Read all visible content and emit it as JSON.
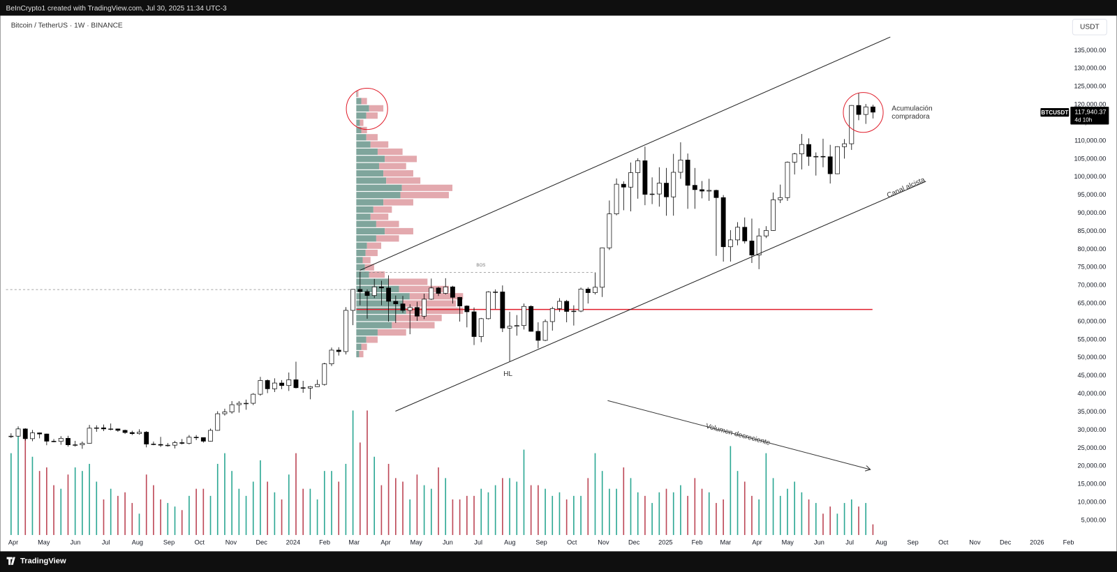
{
  "chart_data": {
    "type": "candlestick",
    "header": "BeInCrypto1 created with TradingView.com, Jul 30, 2025 11:34 UTC-3",
    "title": "Bitcoin / TetherUS · 1W · BINANCE",
    "currency": "USDT",
    "brand": "TradingView",
    "last_price": {
      "symbol": "BTCUSDT",
      "label": "117,940.37",
      "countdown": "4d 10h"
    },
    "annotations": {
      "bos": "BOS",
      "hl": "HL",
      "accumulation": [
        "Acumulación",
        "compradora"
      ],
      "channel": "Canal alcista",
      "volume": "Volumen decreciente"
    },
    "candle_colors": {
      "up": "#ffffff",
      "down": "#000000",
      "border": "#000000"
    },
    "volume_colors": {
      "up": "#089981",
      "down": "#b2283a"
    },
    "profile_colors": {
      "up": "#7fa59c",
      "down": "#e3a9ae"
    },
    "log_scale": false,
    "grid": false,
    "xlim": [
      -3,
      1041
    ],
    "ylim": [
      0,
      140000
    ],
    "yticks": [
      {
        "value": 135000,
        "label": "135,000.00"
      },
      {
        "value": 130000,
        "label": "130,000.00"
      },
      {
        "value": 125000,
        "label": "125,000.00"
      },
      {
        "value": 120000,
        "label": "120,000.00"
      },
      {
        "value": 115000,
        "label": "115,000.00"
      },
      {
        "value": 110000,
        "label": "110,000.00"
      },
      {
        "value": 105000,
        "label": "105,000.00"
      },
      {
        "value": 100000,
        "label": "100,000.00"
      },
      {
        "value": 95000,
        "label": "95,000.00"
      },
      {
        "value": 90000,
        "label": "90,000.00"
      },
      {
        "value": 85000,
        "label": "85,000.00"
      },
      {
        "value": 80000,
        "label": "80,000.00"
      },
      {
        "value": 75000,
        "label": "75,000.00"
      },
      {
        "value": 70000,
        "label": "70,000.00"
      },
      {
        "value": 65000,
        "label": "65,000.00"
      },
      {
        "value": 60000,
        "label": "60,000.00"
      },
      {
        "value": 55000,
        "label": "55,000.00"
      },
      {
        "value": 50000,
        "label": "50,000.00"
      },
      {
        "value": 45000,
        "label": "45,000.00"
      },
      {
        "value": 40000,
        "label": "40,000.00"
      },
      {
        "value": 35000,
        "label": "35,000.00"
      },
      {
        "value": 30000,
        "label": "30,000.00"
      },
      {
        "value": 25000,
        "label": "25,000.00"
      },
      {
        "value": 20000,
        "label": "20,000.00"
      },
      {
        "value": 15000,
        "label": "15,000.00"
      },
      {
        "value": 10000,
        "label": "10,000.00"
      },
      {
        "value": 5000,
        "label": "5,000.00"
      }
    ],
    "xticks": [
      {
        "value": 0,
        "label": "Apr"
      },
      {
        "value": 30,
        "label": "May"
      },
      {
        "value": 61,
        "label": "Jun"
      },
      {
        "value": 91,
        "label": "Jul"
      },
      {
        "value": 122,
        "label": "Aug"
      },
      {
        "value": 153,
        "label": "Sep"
      },
      {
        "value": 183,
        "label": "Oct"
      },
      {
        "value": 214,
        "label": "Nov"
      },
      {
        "value": 244,
        "label": "Dec"
      },
      {
        "value": 275,
        "label": "2024"
      },
      {
        "value": 306,
        "label": "Feb"
      },
      {
        "value": 335,
        "label": "Mar"
      },
      {
        "value": 366,
        "label": "Apr"
      },
      {
        "value": 396,
        "label": "May"
      },
      {
        "value": 427,
        "label": "Jun"
      },
      {
        "value": 457,
        "label": "Jul"
      },
      {
        "value": 488,
        "label": "Aug"
      },
      {
        "value": 519,
        "label": "Sep"
      },
      {
        "value": 549,
        "label": "Oct"
      },
      {
        "value": 580,
        "label": "Nov"
      },
      {
        "value": 610,
        "label": "Dec"
      },
      {
        "value": 641,
        "label": "2025"
      },
      {
        "value": 672,
        "label": "Feb"
      },
      {
        "value": 700,
        "label": "Mar"
      },
      {
        "value": 731,
        "label": "Apr"
      },
      {
        "value": 761,
        "label": "May"
      },
      {
        "value": 792,
        "label": "Jun"
      },
      {
        "value": 822,
        "label": "Jul"
      },
      {
        "value": 853,
        "label": "Aug"
      },
      {
        "value": 884,
        "label": "Sep"
      },
      {
        "value": 914,
        "label": "Oct"
      },
      {
        "value": 945,
        "label": "Nov"
      },
      {
        "value": 975,
        "label": "Dec"
      },
      {
        "value": 1006,
        "label": "2026"
      },
      {
        "value": 1037,
        "label": "Feb"
      }
    ],
    "x": [
      2,
      9,
      16,
      23,
      30,
      37,
      44,
      51,
      58,
      65,
      72,
      79,
      86,
      93,
      100,
      107,
      114,
      121,
      128,
      135,
      142,
      149,
      156,
      163,
      170,
      177,
      184,
      191,
      198,
      205,
      212,
      219,
      226,
      233,
      240,
      247,
      254,
      261,
      268,
      275,
      282,
      289,
      296,
      303,
      310,
      317,
      324,
      331,
      338,
      345,
      352,
      359,
      366,
      373,
      380,
      387,
      394,
      401,
      408,
      415,
      422,
      429,
      436,
      443,
      450,
      457,
      464,
      471,
      478,
      485,
      492,
      499,
      506,
      513,
      520,
      527,
      534,
      541,
      548,
      555,
      562,
      569,
      576,
      583,
      590,
      597,
      604,
      611,
      618,
      625,
      632,
      639,
      646,
      653,
      660,
      667,
      674,
      681,
      688,
      695,
      702,
      709,
      716,
      723,
      730,
      737,
      744,
      751,
      758,
      765,
      772,
      779,
      786,
      793,
      800,
      807,
      814,
      821,
      828,
      835,
      842,
      849
    ],
    "ohlc": [
      [
        28170,
        29100,
        27800,
        28300
      ],
      [
        28300,
        31000,
        28200,
        30300
      ],
      [
        30300,
        30500,
        27100,
        27600
      ],
      [
        27600,
        30000,
        26900,
        29200
      ],
      [
        29200,
        29300,
        27700,
        28900
      ],
      [
        28900,
        29000,
        25800,
        26900
      ],
      [
        26900,
        27500,
        26600,
        26850
      ],
      [
        26850,
        28300,
        25900,
        27700
      ],
      [
        27700,
        28400,
        25400,
        25900
      ],
      [
        25900,
        27000,
        25400,
        25900
      ],
      [
        25900,
        26800,
        24800,
        26300
      ],
      [
        26300,
        31400,
        26200,
        30500
      ],
      [
        30500,
        31300,
        29500,
        30600
      ],
      [
        30600,
        31500,
        29700,
        30300
      ],
      [
        30300,
        31800,
        29900,
        30300
      ],
      [
        30300,
        30400,
        29500,
        29900
      ],
      [
        29900,
        30100,
        28900,
        29300
      ],
      [
        29300,
        29800,
        28600,
        29000
      ],
      [
        29000,
        30200,
        28700,
        29400
      ],
      [
        29400,
        29700,
        25200,
        26100
      ],
      [
        26100,
        26800,
        25800,
        26000
      ],
      [
        26000,
        28100,
        25300,
        25800
      ],
      [
        25800,
        26400,
        25400,
        25800
      ],
      [
        25800,
        27000,
        24900,
        26500
      ],
      [
        26500,
        27500,
        26000,
        26300
      ],
      [
        26300,
        28600,
        26000,
        28000
      ],
      [
        28000,
        28600,
        27200,
        27900
      ],
      [
        27900,
        27950,
        26500,
        26900
      ],
      [
        26900,
        30400,
        26800,
        29900
      ],
      [
        29900,
        35200,
        29800,
        34500
      ],
      [
        34500,
        35900,
        34000,
        35000
      ],
      [
        35000,
        38000,
        34500,
        37000
      ],
      [
        37000,
        38000,
        34800,
        37400
      ],
      [
        37400,
        38400,
        35600,
        37400
      ],
      [
        37400,
        40200,
        36900,
        39900
      ],
      [
        39900,
        44700,
        39500,
        43700
      ],
      [
        43700,
        44000,
        40200,
        41400
      ],
      [
        41400,
        44300,
        40500,
        43000
      ],
      [
        43000,
        43800,
        41300,
        42300
      ],
      [
        42300,
        45900,
        40800,
        43900
      ],
      [
        43900,
        48900,
        41500,
        41700
      ],
      [
        41700,
        43600,
        40300,
        41600
      ],
      [
        41600,
        42200,
        38500,
        42000
      ],
      [
        42000,
        43900,
        41900,
        42600
      ],
      [
        42600,
        48600,
        42300,
        48300
      ],
      [
        48300,
        52800,
        47700,
        52100
      ],
      [
        52100,
        52900,
        50600,
        51700
      ],
      [
        51700,
        64000,
        50900,
        63100
      ],
      [
        63100,
        69000,
        59000,
        68900
      ],
      [
        68900,
        73800,
        64500,
        68300
      ],
      [
        68300,
        68900,
        60800,
        67200
      ],
      [
        67200,
        71800,
        66500,
        69600
      ],
      [
        69600,
        71300,
        64500,
        69300
      ],
      [
        69300,
        72800,
        60000,
        65600
      ],
      [
        65600,
        67200,
        59600,
        64900
      ],
      [
        64900,
        67100,
        62400,
        63100
      ],
      [
        63100,
        64800,
        56500,
        63900
      ],
      [
        63900,
        65500,
        60200,
        61500
      ],
      [
        61500,
        67700,
        60700,
        66200
      ],
      [
        66200,
        71900,
        66000,
        69300
      ],
      [
        69300,
        69600,
        67100,
        67800
      ],
      [
        67800,
        72000,
        67500,
        69600
      ],
      [
        69600,
        69900,
        65000,
        66700
      ],
      [
        66700,
        66800,
        60000,
        64300
      ],
      [
        64300,
        64500,
        58400,
        62700
      ],
      [
        62700,
        63900,
        53500,
        55850
      ],
      [
        55850,
        61000,
        54300,
        60800
      ],
      [
        60800,
        68400,
        60600,
        68200
      ],
      [
        68200,
        68900,
        63500,
        68200
      ],
      [
        68200,
        70000,
        57100,
        58200
      ],
      [
        58200,
        62700,
        49000,
        58700
      ],
      [
        58700,
        61800,
        56100,
        58900
      ],
      [
        58900,
        65000,
        57800,
        64200
      ],
      [
        64200,
        64500,
        57200,
        57300
      ],
      [
        57300,
        59800,
        52600,
        54800
      ],
      [
        54800,
        60600,
        54600,
        60000
      ],
      [
        60000,
        64100,
        57500,
        63600
      ],
      [
        63600,
        66500,
        62700,
        65600
      ],
      [
        65600,
        66000,
        59800,
        62800
      ],
      [
        62800,
        64500,
        58900,
        62900
      ],
      [
        62900,
        69400,
        62600,
        69000
      ],
      [
        69000,
        69500,
        65000,
        68000
      ],
      [
        68000,
        73600,
        67500,
        69500
      ],
      [
        69500,
        80500,
        66800,
        80400
      ],
      [
        80400,
        93500,
        79800,
        89800
      ],
      [
        89800,
        99600,
        89400,
        98000
      ],
      [
        98000,
        98800,
        90800,
        97200
      ],
      [
        97200,
        104000,
        90500,
        101200
      ],
      [
        101200,
        105200,
        94000,
        104500
      ],
      [
        104500,
        108400,
        92200,
        95200
      ],
      [
        95200,
        99900,
        92500,
        95300
      ],
      [
        95300,
        102700,
        91800,
        98300
      ],
      [
        98300,
        102500,
        89300,
        94500
      ],
      [
        94500,
        106400,
        89300,
        101300
      ],
      [
        101300,
        109600,
        99500,
        104700
      ],
      [
        104700,
        106500,
        91200,
        97700
      ],
      [
        97700,
        102500,
        91200,
        96500
      ],
      [
        96500,
        98900,
        94100,
        96100
      ],
      [
        96100,
        99500,
        93400,
        96300
      ],
      [
        96300,
        96500,
        78200,
        94300
      ],
      [
        94300,
        95000,
        76600,
        80700
      ],
      [
        80700,
        85300,
        76600,
        82600
      ],
      [
        82600,
        87500,
        81100,
        86100
      ],
      [
        86100,
        88800,
        81600,
        82300
      ],
      [
        82300,
        88500,
        76200,
        78400
      ],
      [
        78400,
        85800,
        74500,
        83700
      ],
      [
        83700,
        86400,
        83100,
        85200
      ],
      [
        85200,
        95700,
        85100,
        93700
      ],
      [
        93700,
        97900,
        92800,
        94300
      ],
      [
        94300,
        104300,
        93400,
        104100
      ],
      [
        104100,
        106700,
        100700,
        106400
      ],
      [
        106400,
        111900,
        102100,
        109000
      ],
      [
        109000,
        110700,
        103100,
        105700
      ],
      [
        105700,
        106800,
        100400,
        105700
      ],
      [
        105700,
        110600,
        102700,
        105600
      ],
      [
        105600,
        108900,
        98200,
        100900
      ],
      [
        100900,
        108500,
        100800,
        108400
      ],
      [
        108400,
        110500,
        105100,
        109200
      ],
      [
        109200,
        119900,
        107500,
        119800
      ],
      [
        119800,
        123200,
        115700,
        117300
      ],
      [
        117300,
        120200,
        114700,
        119400
      ],
      [
        119400,
        120000,
        116200,
        117940.37
      ]
    ],
    "volume": [
      230,
      300,
      270,
      220,
      180,
      190,
      140,
      130,
      170,
      190,
      180,
      200,
      150,
      100,
      130,
      110,
      120,
      90,
      60,
      170,
      140,
      100,
      90,
      80,
      70,
      110,
      130,
      130,
      110,
      200,
      230,
      180,
      130,
      110,
      150,
      210,
      150,
      120,
      100,
      170,
      230,
      130,
      130,
      100,
      180,
      180,
      150,
      200,
      350,
      260,
      350,
      220,
      140,
      200,
      160,
      150,
      100,
      170,
      140,
      130,
      190,
      160,
      100,
      100,
      110,
      110,
      130,
      120,
      140,
      160,
      160,
      150,
      240,
      140,
      140,
      130,
      110,
      120,
      100,
      110,
      110,
      160,
      230,
      180,
      130,
      130,
      190,
      160,
      120,
      110,
      90,
      120,
      130,
      120,
      140,
      110,
      160,
      130,
      120,
      90,
      100,
      250,
      180,
      150,
      110,
      100,
      230,
      160,
      110,
      130,
      150,
      120,
      100,
      90,
      60,
      80,
      60,
      90,
      100,
      80,
      90,
      30
    ],
    "volume_profile": {
      "bins": [
        50000,
        52000,
        54000,
        56000,
        58000,
        60000,
        62000,
        64000,
        66000,
        68000,
        70000,
        72000,
        74000,
        76000,
        78000,
        80000,
        82000,
        84000,
        86000,
        88000,
        90000,
        92000,
        94000,
        96000,
        98000,
        100000,
        102000,
        104000,
        106000,
        108000,
        110000,
        112000,
        114000,
        116000,
        118000,
        120000,
        122000,
        124000
      ],
      "up": [
        4,
        7,
        14,
        30,
        50,
        55,
        70,
        65,
        75,
        60,
        45,
        18,
        12,
        9,
        13,
        15,
        28,
        40,
        28,
        20,
        24,
        38,
        62,
        64,
        42,
        38,
        32,
        40,
        30,
        20,
        14,
        7,
        5,
        14,
        18,
        7,
        1
      ],
      "down": [
        6,
        8,
        16,
        40,
        60,
        65,
        80,
        75,
        75,
        70,
        55,
        22,
        13,
        11,
        17,
        20,
        32,
        40,
        32,
        25,
        26,
        42,
        68,
        71,
        48,
        42,
        38,
        45,
        35,
        25,
        16,
        8,
        5,
        16,
        20,
        8,
        2
      ]
    }
  }
}
